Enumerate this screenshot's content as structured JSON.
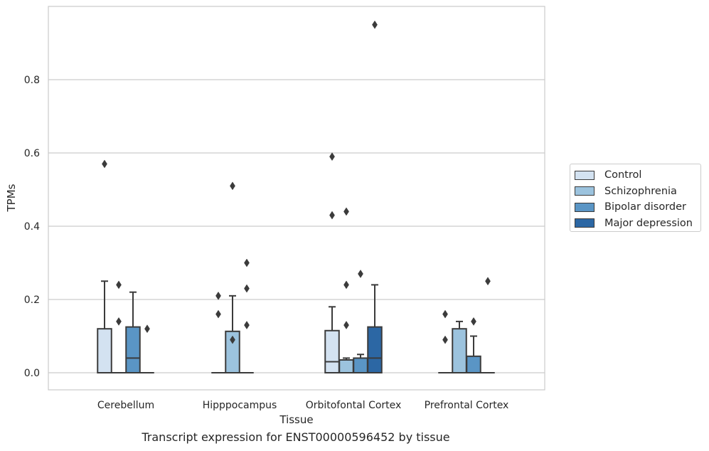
{
  "caption": "Transcript expression for ENST00000596452 by tissue",
  "chart_data": {
    "type": "box",
    "xlabel": "Tissue",
    "ylabel": "TPMs",
    "ylim": [
      -0.045,
      0.99
    ],
    "yticks": [
      0.0,
      0.2,
      0.4,
      0.6,
      0.8
    ],
    "ytick_labels": [
      "0.0",
      "0.2",
      "0.4",
      "0.6",
      "0.8"
    ],
    "grid": "horizontal",
    "legend_position": "right",
    "categories": [
      "Cerebellum",
      "Hipppocampus",
      "Orbitofontal Cortex",
      "Prefrontal Cortex"
    ],
    "series": [
      {
        "name": "Control",
        "color": "#d3e2f1",
        "boxes": [
          {
            "q1": 0.0,
            "median": 0.0,
            "q3": 0.12,
            "whisker_low": 0.0,
            "whisker_high": 0.25,
            "outliers": [
              0.57
            ]
          },
          {
            "q1": 0.0,
            "median": 0.0,
            "q3": 0.0,
            "whisker_low": 0.0,
            "whisker_high": 0.0,
            "outliers": [
              0.16,
              0.21
            ]
          },
          {
            "q1": 0.0,
            "median": 0.03,
            "q3": 0.115,
            "whisker_low": 0.0,
            "whisker_high": 0.18,
            "outliers": [
              0.43,
              0.59
            ]
          },
          {
            "q1": 0.0,
            "median": 0.0,
            "q3": 0.0,
            "whisker_low": 0.0,
            "whisker_high": 0.0,
            "outliers": [
              0.09,
              0.16
            ]
          }
        ]
      },
      {
        "name": "Schizophrenia",
        "color": "#9cc3de",
        "boxes": [
          {
            "q1": 0.0,
            "median": 0.0,
            "q3": 0.0,
            "whisker_low": 0.0,
            "whisker_high": 0.0,
            "outliers": [
              0.14,
              0.24
            ]
          },
          {
            "q1": 0.0,
            "median": 0.0,
            "q3": 0.113,
            "whisker_low": 0.0,
            "whisker_high": 0.21,
            "outliers": [
              0.09,
              0.51
            ]
          },
          {
            "q1": 0.0,
            "median": 0.0,
            "q3": 0.035,
            "whisker_low": 0.0,
            "whisker_high": 0.04,
            "outliers": [
              0.13,
              0.24,
              0.44
            ]
          },
          {
            "q1": 0.0,
            "median": 0.0,
            "q3": 0.12,
            "whisker_low": 0.0,
            "whisker_high": 0.14,
            "outliers": []
          }
        ]
      },
      {
        "name": "Bipolar disorder",
        "color": "#5a95c5",
        "boxes": [
          {
            "q1": 0.0,
            "median": 0.04,
            "q3": 0.125,
            "whisker_low": 0.0,
            "whisker_high": 0.22,
            "outliers": []
          },
          {
            "q1": 0.0,
            "median": 0.0,
            "q3": 0.0,
            "whisker_low": 0.0,
            "whisker_high": 0.0,
            "outliers": [
              0.13,
              0.23,
              0.3
            ]
          },
          {
            "q1": 0.0,
            "median": 0.0,
            "q3": 0.04,
            "whisker_low": 0.0,
            "whisker_high": 0.05,
            "outliers": [
              0.27
            ]
          },
          {
            "q1": 0.0,
            "median": 0.0,
            "q3": 0.045,
            "whisker_low": 0.0,
            "whisker_high": 0.1,
            "outliers": [
              0.14
            ]
          }
        ]
      },
      {
        "name": "Major depression",
        "color": "#2c67a4",
        "boxes": [
          {
            "q1": 0.0,
            "median": 0.0,
            "q3": 0.0,
            "whisker_low": 0.0,
            "whisker_high": 0.0,
            "outliers": [
              0.12
            ]
          },
          null,
          {
            "q1": 0.0,
            "median": 0.04,
            "q3": 0.125,
            "whisker_low": 0.0,
            "whisker_high": 0.24,
            "outliers": [
              0.95
            ]
          },
          {
            "q1": 0.0,
            "median": 0.0,
            "q3": 0.0,
            "whisker_low": 0.0,
            "whisker_high": 0.0,
            "outliers": [
              0.25
            ]
          }
        ]
      }
    ]
  }
}
